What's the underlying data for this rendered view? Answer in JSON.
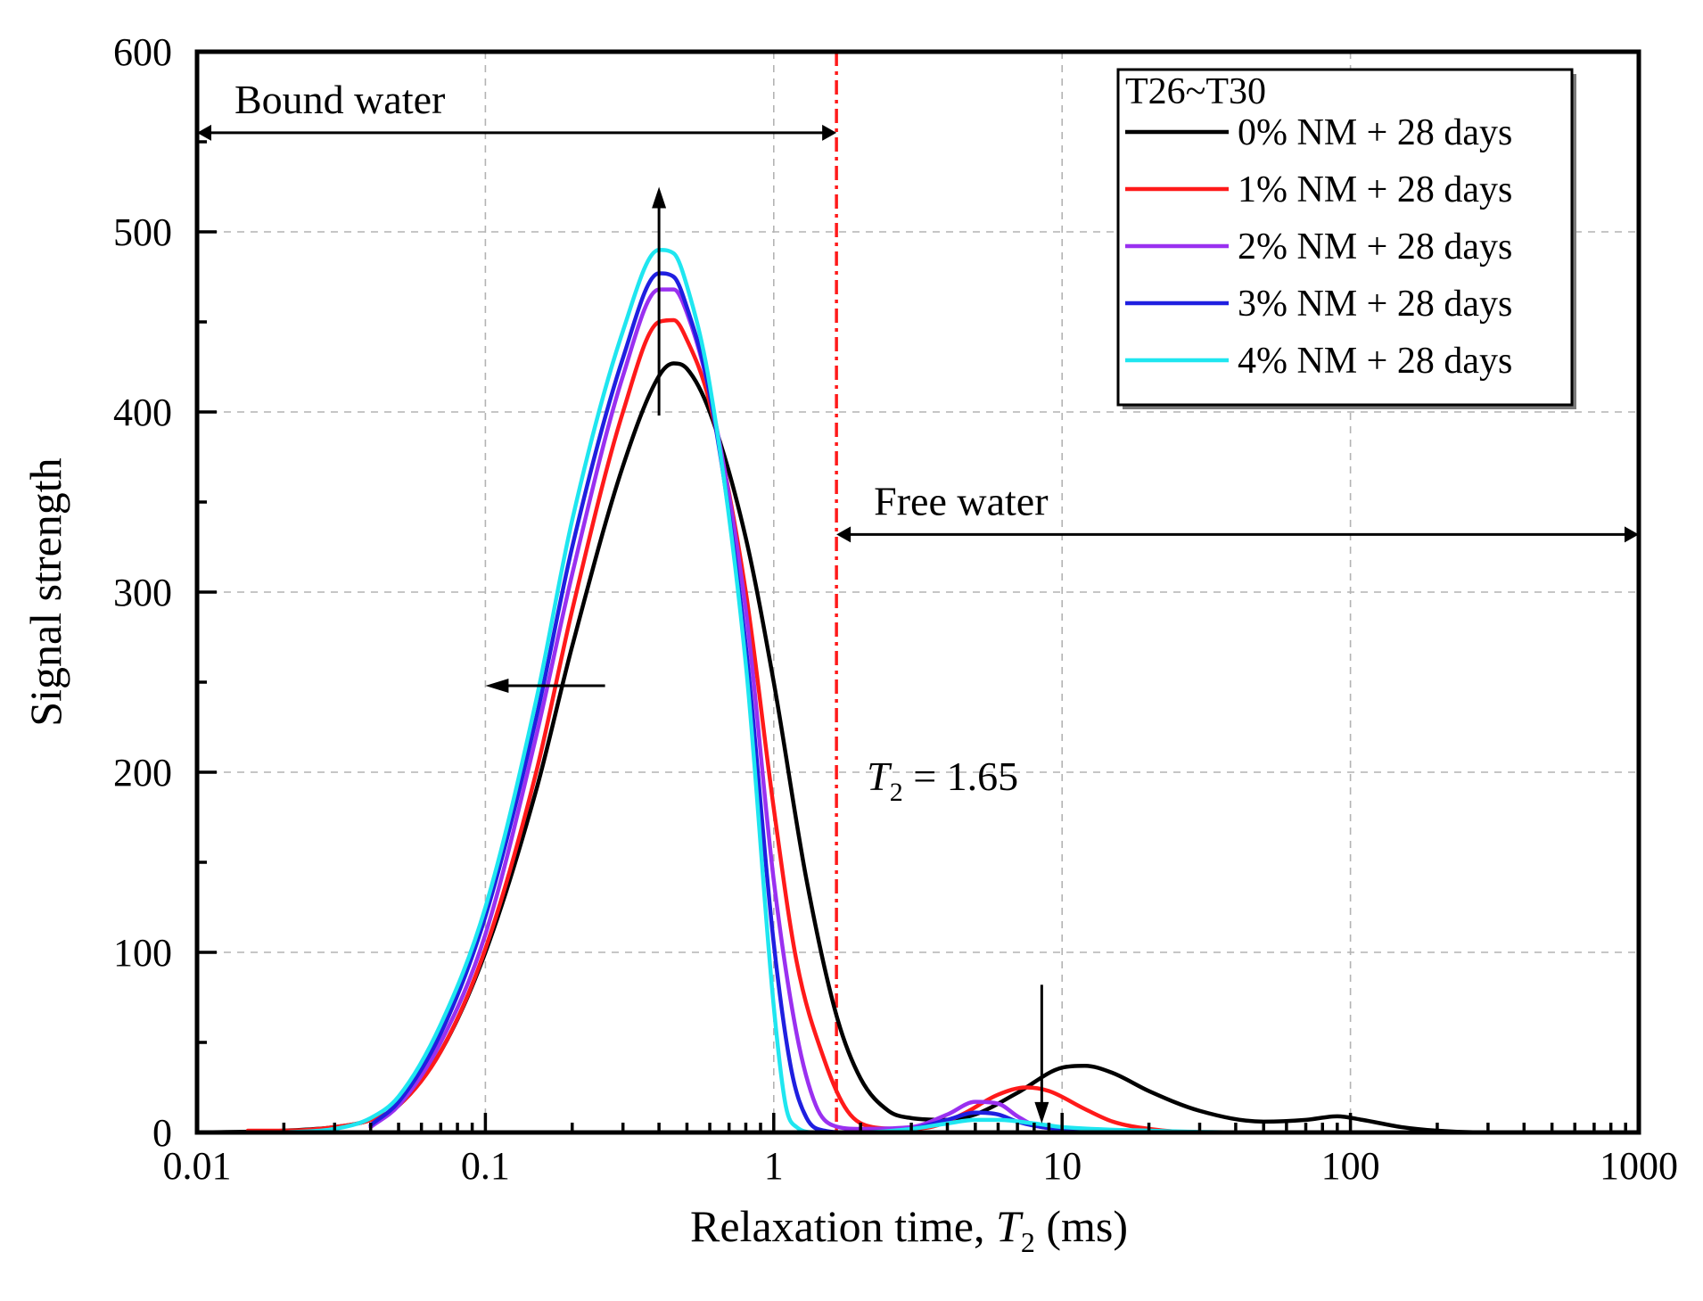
{
  "chart_data": {
    "type": "line",
    "xscale": "log",
    "xlim": [
      0.01,
      1000
    ],
    "ylim": [
      0,
      600
    ],
    "xticks": [
      0.01,
      0.1,
      1,
      10,
      100,
      1000
    ],
    "xtick_labels": [
      "0.01",
      "0.1",
      "1",
      "10",
      "100",
      "1000"
    ],
    "yticks": [
      0,
      100,
      200,
      300,
      400,
      500,
      600
    ],
    "ytick_labels": [
      "0",
      "100",
      "200",
      "300",
      "400",
      "500",
      "600"
    ],
    "ylabel": "Signal strength",
    "xlabel": {
      "prefix": "Relaxation time, ",
      "var": "T",
      "sub": "2",
      "suffix": " (ms)"
    },
    "grid": true,
    "legend": {
      "title": "T26~T30",
      "position": "top-right",
      "entries": [
        {
          "label": "0% NM + 28 days",
          "color": "#000000"
        },
        {
          "label": "1% NM + 28 days",
          "color": "#ff1a1a"
        },
        {
          "label": "2% NM + 28 days",
          "color": "#9a30f0"
        },
        {
          "label": "3% NM + 28 days",
          "color": "#1f1fe0"
        },
        {
          "label": "4% NM + 28 days",
          "color": "#1fe6f0"
        }
      ]
    },
    "series": [
      {
        "name": "0% NM + 28 days",
        "color": "#000000",
        "x": [
          0.01,
          0.02,
          0.03,
          0.04,
          0.05,
          0.07,
          0.1,
          0.15,
          0.2,
          0.3,
          0.4,
          0.45,
          0.5,
          0.6,
          0.8,
          1.0,
          1.3,
          1.65,
          2.0,
          2.5,
          3.0,
          4.0,
          5.0,
          7.0,
          10.0,
          12.0,
          15.0,
          20.0,
          30.0,
          50.0,
          70.0,
          90.0,
          110.0,
          150.0,
          200.0,
          300.0,
          500.0,
          1000.0
        ],
        "y": [
          0,
          1,
          3,
          7,
          15,
          45,
          100,
          190,
          270,
          370,
          420,
          427,
          424,
          400,
          330,
          250,
          140,
          65,
          30,
          12,
          8,
          7,
          10,
          22,
          36,
          37,
          33,
          23,
          12,
          6,
          7,
          9,
          7,
          3,
          1,
          0,
          0,
          0
        ]
      },
      {
        "name": "1% NM + 28 days",
        "color": "#ff1a1a",
        "x": [
          0.015,
          0.02,
          0.03,
          0.04,
          0.05,
          0.07,
          0.1,
          0.15,
          0.2,
          0.3,
          0.4,
          0.45,
          0.5,
          0.6,
          0.8,
          1.0,
          1.2,
          1.5,
          1.8,
          2.2,
          2.8,
          3.5,
          4.5,
          6.0,
          7.5,
          9.0,
          12.0,
          15.0,
          20.0,
          30.0,
          50.0,
          80.0
        ],
        "y": [
          1,
          1,
          3,
          7,
          15,
          45,
          102,
          200,
          290,
          400,
          450,
          451,
          440,
          405,
          300,
          180,
          95,
          40,
          12,
          3,
          2,
          3,
          10,
          21,
          25,
          23,
          13,
          6,
          2,
          0,
          0,
          0
        ]
      },
      {
        "name": "2% NM + 28 days",
        "color": "#9a30f0",
        "x": [
          0.04,
          0.05,
          0.07,
          0.1,
          0.15,
          0.2,
          0.3,
          0.4,
          0.45,
          0.5,
          0.6,
          0.8,
          1.0,
          1.2,
          1.4,
          1.6,
          2.0,
          3.0,
          4.0,
          5.0,
          6.0,
          7.0,
          8.0,
          10.0,
          15.0,
          30.0,
          80.0
        ],
        "y": [
          3,
          15,
          50,
          110,
          220,
          310,
          420,
          468,
          468,
          455,
          410,
          290,
          140,
          55,
          15,
          4,
          2,
          3,
          10,
          17,
          16,
          9,
          4,
          2,
          1,
          0,
          0
        ]
      },
      {
        "name": "3% NM + 28 days",
        "color": "#1f1fe0",
        "x": [
          0.04,
          0.05,
          0.07,
          0.1,
          0.15,
          0.2,
          0.3,
          0.4,
          0.45,
          0.5,
          0.6,
          0.8,
          1.0,
          1.15,
          1.3,
          1.5,
          1.8,
          3.0,
          4.0,
          5.0,
          6.0,
          7.0,
          8.5,
          10.0,
          15.0,
          30.0,
          80.0
        ],
        "y": [
          4,
          17,
          55,
          120,
          230,
          325,
          430,
          477,
          475,
          458,
          410,
          270,
          105,
          35,
          8,
          1,
          0,
          2,
          7,
          11,
          10,
          6,
          3,
          2,
          1,
          0,
          0
        ]
      },
      {
        "name": "4% NM + 28 days",
        "color": "#1fe6f0",
        "x": [
          0.02,
          0.03,
          0.04,
          0.05,
          0.07,
          0.1,
          0.15,
          0.2,
          0.3,
          0.4,
          0.45,
          0.5,
          0.6,
          0.8,
          1.0,
          1.1,
          1.2,
          1.4,
          2.0,
          3.0,
          4.0,
          5.0,
          6.0,
          8.0,
          10.0,
          20.0,
          50.0,
          80.0
        ],
        "y": [
          0,
          2,
          8,
          20,
          60,
          125,
          240,
          340,
          445,
          490,
          488,
          470,
          415,
          260,
          70,
          15,
          3,
          0,
          0,
          2,
          5,
          7,
          7,
          5,
          3,
          1,
          0,
          0
        ]
      }
    ],
    "annotations": {
      "bound_water": "Bound water",
      "free_water": "Free water",
      "t2_var": "T",
      "t2_sub": "2",
      "t2_value": " = 1.65",
      "t2_cutoff_x": 1.65,
      "cutoff_color": "#ff1a1a",
      "bound_range": [
        0.01,
        1.65
      ],
      "free_range": [
        1.65,
        1000
      ],
      "bound_arrow_y": 555,
      "free_arrow_y": 332,
      "up_arrow": {
        "x": 0.4,
        "y_from": 398,
        "y_to": 525
      },
      "left_arrow": {
        "y": 248,
        "x_from": 0.26,
        "x_to": 0.1
      },
      "down_arrow": {
        "x": 8.5,
        "y_from": 82,
        "y_to": 5
      }
    }
  }
}
